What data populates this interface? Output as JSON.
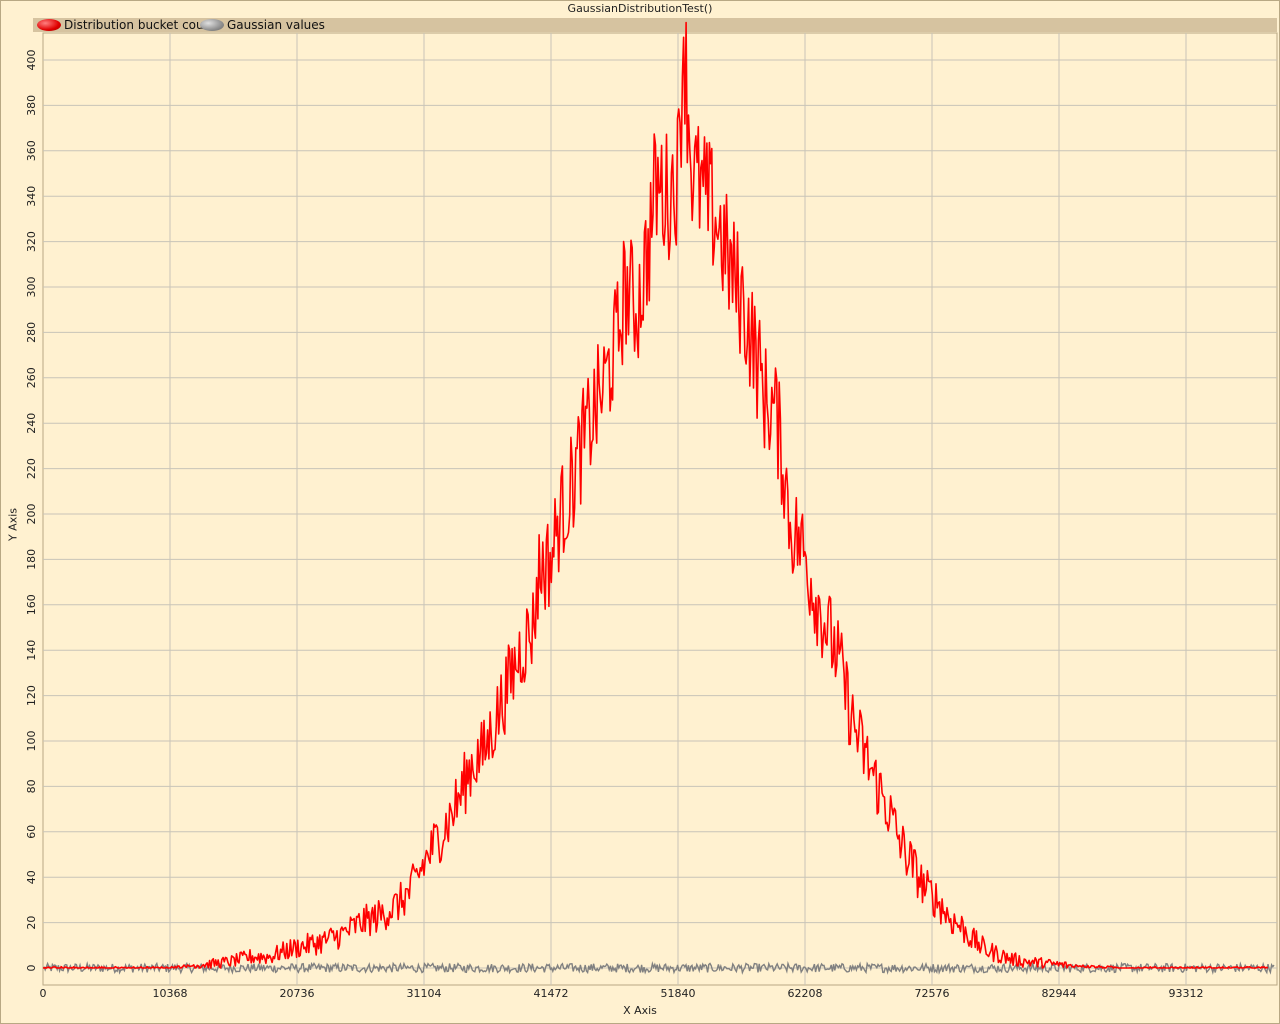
{
  "chart_data": {
    "type": "line",
    "title": "GaussianDistributionTest()",
    "xlabel": "X Axis",
    "ylabel": "Y Axis",
    "xlim": [
      0,
      100000
    ],
    "ylim": [
      -10,
      410
    ],
    "x_ticks": [
      0,
      10368,
      20736,
      31104,
      41472,
      51840,
      62208,
      72576,
      82944,
      93312
    ],
    "y_ticks": [
      0,
      20,
      40,
      60,
      80,
      100,
      120,
      140,
      160,
      180,
      200,
      220,
      240,
      260,
      280,
      300,
      320,
      340,
      360,
      380,
      400
    ],
    "grid": true,
    "legend_position": "top",
    "series": [
      {
        "name": "Distribution bucket count",
        "color": "#ff0000",
        "distribution": "gaussian",
        "mean": 52500,
        "std_dev": 12500,
        "peak": 410,
        "points": [
          [
            0,
            0
          ],
          [
            5000,
            0
          ],
          [
            10000,
            0
          ],
          [
            12000,
            1
          ],
          [
            14000,
            2
          ],
          [
            15500,
            3
          ],
          [
            17000,
            5
          ],
          [
            18500,
            5
          ],
          [
            20000,
            8
          ],
          [
            21500,
            10
          ],
          [
            23000,
            12
          ],
          [
            24500,
            15
          ],
          [
            26000,
            20
          ],
          [
            27500,
            23
          ],
          [
            29000,
            28
          ],
          [
            30000,
            34
          ],
          [
            31000,
            45
          ],
          [
            32000,
            55
          ],
          [
            33000,
            64
          ],
          [
            34000,
            75
          ],
          [
            35000,
            90
          ],
          [
            36000,
            95
          ],
          [
            37000,
            110
          ],
          [
            38000,
            125
          ],
          [
            39000,
            140
          ],
          [
            40000,
            150
          ],
          [
            40500,
            175
          ],
          [
            41500,
            180
          ],
          [
            42000,
            195
          ],
          [
            43000,
            210
          ],
          [
            44000,
            230
          ],
          [
            45000,
            245
          ],
          [
            46000,
            260
          ],
          [
            47000,
            280
          ],
          [
            47500,
            300
          ],
          [
            48500,
            290
          ],
          [
            49500,
            320
          ],
          [
            50000,
            345
          ],
          [
            51000,
            340
          ],
          [
            51840,
            350
          ],
          [
            52300,
            410
          ],
          [
            53000,
            350
          ],
          [
            54000,
            340
          ],
          [
            55000,
            330
          ],
          [
            56000,
            310
          ],
          [
            57000,
            295
          ],
          [
            58000,
            275
          ],
          [
            59000,
            250
          ],
          [
            59800,
            245
          ],
          [
            60500,
            220
          ],
          [
            61000,
            195
          ],
          [
            62000,
            185
          ],
          [
            63000,
            165
          ],
          [
            64000,
            150
          ],
          [
            65000,
            135
          ],
          [
            66000,
            110
          ],
          [
            67000,
            95
          ],
          [
            68000,
            82
          ],
          [
            69000,
            70
          ],
          [
            70000,
            55
          ],
          [
            71000,
            45
          ],
          [
            72000,
            35
          ],
          [
            73000,
            30
          ],
          [
            74000,
            22
          ],
          [
            75000,
            18
          ],
          [
            76000,
            12
          ],
          [
            77000,
            8
          ],
          [
            78000,
            6
          ],
          [
            79000,
            4
          ],
          [
            80000,
            3
          ],
          [
            82000,
            2
          ],
          [
            84000,
            1
          ],
          [
            88000,
            0
          ],
          [
            92000,
            0
          ],
          [
            96000,
            0
          ]
        ]
      },
      {
        "name": "Gaussian values",
        "color": "#808080",
        "distribution": "noise",
        "mean": 0,
        "range": [
          -2,
          2
        ]
      }
    ]
  }
}
